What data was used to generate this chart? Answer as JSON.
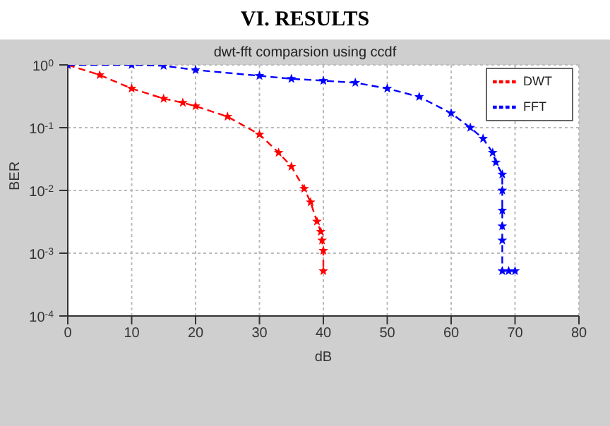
{
  "chart_data": {
    "type": "line",
    "title": "dwt-fft comparsion using ccdf",
    "xlabel": "dB",
    "ylabel": "BER",
    "annotations": [
      "VI. RESULTS"
    ],
    "xlim": [
      0,
      80
    ],
    "xticks": [
      0,
      10,
      20,
      30,
      40,
      50,
      60,
      70,
      80
    ],
    "ylim": [
      0.0001,
      1
    ],
    "yticks": [
      {
        "value": 0.0001,
        "label": "10$^{-4}$"
      },
      {
        "value": 0.001,
        "label": "10$^{-3}$"
      },
      {
        "value": 0.01,
        "label": "10$^{-2}$"
      },
      {
        "value": 0.1,
        "label": "10$^{-1}$"
      },
      {
        "value": 1,
        "label": "10$^{0}$"
      }
    ],
    "log": "y",
    "grid": true,
    "legend": "top right",
    "marker": "star",
    "line_style": "dashed",
    "series": [
      {
        "name": "DWT",
        "color": "#ff0000",
        "x": [
          0,
          5,
          10,
          15,
          18,
          20,
          25,
          30,
          33,
          35,
          37,
          38,
          39,
          39.6,
          39.8,
          40,
          40
        ],
        "values": [
          1,
          0.69,
          0.42,
          0.29,
          0.25,
          0.22,
          0.15,
          0.078,
          0.04,
          0.024,
          0.0107,
          0.0065,
          0.0032,
          0.0022,
          0.0016,
          0.0011,
          0.00052
        ]
      },
      {
        "name": "FFT",
        "color": "#0000ff",
        "x": [
          0,
          10,
          15,
          20,
          30,
          35,
          40,
          45,
          50,
          55,
          60,
          63,
          65,
          66.5,
          67,
          68,
          68,
          68,
          68,
          68,
          68,
          69,
          70
        ],
        "values": [
          1,
          1,
          0.97,
          0.83,
          0.67,
          0.6,
          0.56,
          0.52,
          0.42,
          0.31,
          0.17,
          0.1,
          0.067,
          0.04,
          0.028,
          0.018,
          0.01,
          0.0048,
          0.0027,
          0.0016,
          0.00052,
          0.00052,
          0.00052
        ]
      }
    ]
  }
}
